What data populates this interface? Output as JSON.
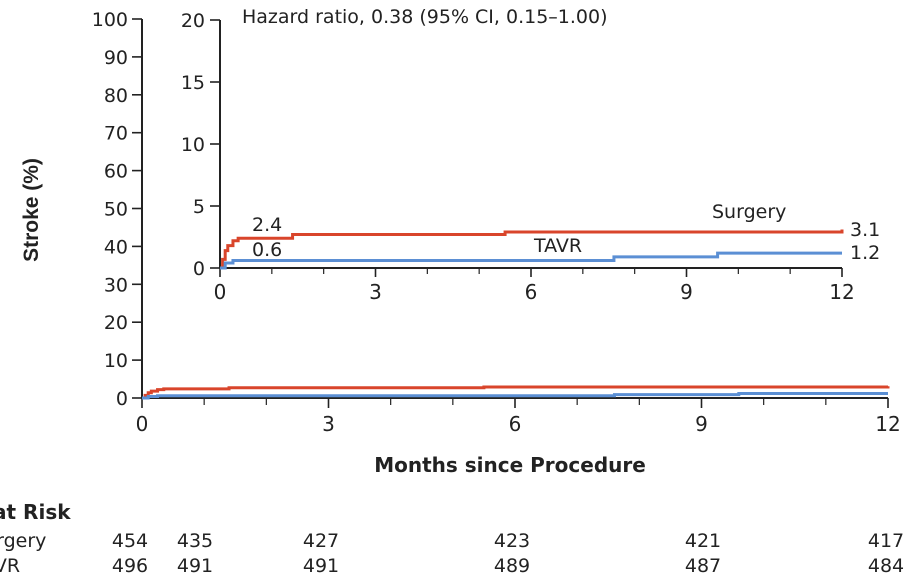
{
  "chart_data": {
    "type": "line",
    "main": {
      "ylabel": "Stroke (%)",
      "xlabel": "Months since Procedure",
      "ylim": [
        0,
        100
      ],
      "xlim": [
        0,
        12
      ],
      "yticks": [
        "0",
        "10",
        "20",
        "30",
        "40",
        "50",
        "60",
        "70",
        "80",
        "90",
        "100"
      ],
      "xticks": [
        "0",
        "3",
        "6",
        "9",
        "12"
      ]
    },
    "inset": {
      "annotation": "Hazard ratio, 0.38 (95% CI, 0.15–1.00)",
      "ylim": [
        0,
        20
      ],
      "xlim": [
        0,
        12
      ],
      "yticks": [
        "0",
        "5",
        "10",
        "15",
        "20"
      ],
      "xticks": [
        "0",
        "3",
        "6",
        "9",
        "12"
      ]
    },
    "series": [
      {
        "name": "Surgery",
        "color": "#d9452b",
        "start_label": "2.4",
        "end_label": "3.1",
        "points": [
          [
            0,
            0
          ],
          [
            0.05,
            0.7
          ],
          [
            0.1,
            1.4
          ],
          [
            0.15,
            1.8
          ],
          [
            0.25,
            2.2
          ],
          [
            0.35,
            2.4
          ],
          [
            1.4,
            2.7
          ],
          [
            5.5,
            2.9
          ],
          [
            12,
            3.1
          ]
        ]
      },
      {
        "name": "TAVR",
        "color": "#5b8fd4",
        "start_label": "0.6",
        "end_label": "1.2",
        "points": [
          [
            0,
            0
          ],
          [
            0.1,
            0.4
          ],
          [
            0.25,
            0.6
          ],
          [
            7.6,
            0.9
          ],
          [
            9.6,
            1.2
          ],
          [
            12,
            1.2
          ]
        ]
      }
    ]
  },
  "risk_table": {
    "title": "No. at Risk",
    "rows": [
      {
        "label": "Surgery",
        "values": [
          "454",
          "435",
          "427",
          "423",
          "421",
          "417"
        ]
      },
      {
        "label": "TAVR",
        "values": [
          "496",
          "491",
          "491",
          "489",
          "487",
          "484"
        ]
      }
    ]
  }
}
